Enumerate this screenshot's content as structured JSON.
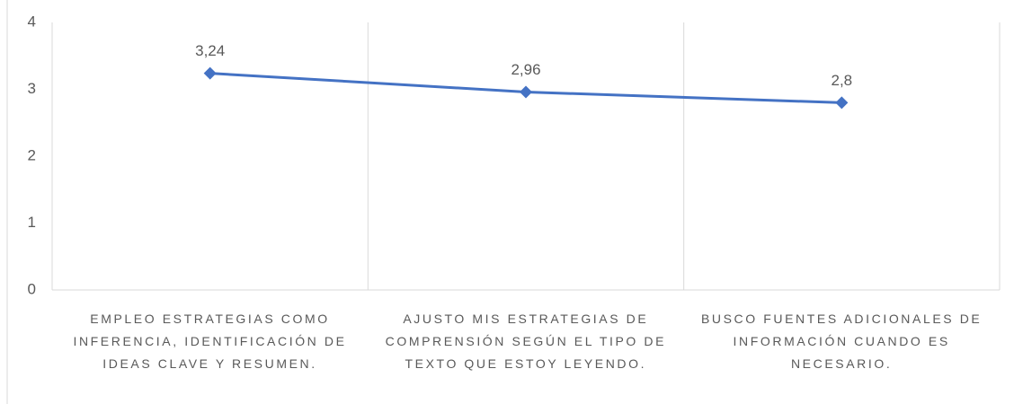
{
  "chart_data": {
    "type": "line",
    "categories": [
      "EMPLEO ESTRATEGIAS COMO INFERENCIA, IDENTIFICACIÓN DE IDEAS CLAVE Y RESUMEN.",
      "AJUSTO MIS ESTRATEGIAS DE COMPRENSIÓN SEGÚN EL TIPO DE TEXTO QUE ESTOY LEYENDO.",
      "BUSCO FUENTES ADICIONALES DE INFORMACIÓN CUANDO ES NECESARIO."
    ],
    "values": [
      3.24,
      2.96,
      2.8
    ],
    "value_labels": [
      "3,24",
      "2,96",
      "2,8"
    ],
    "color": "#4472c4",
    "ylim": [
      0,
      4
    ],
    "yticks": [
      0,
      1,
      2,
      3,
      4
    ]
  }
}
